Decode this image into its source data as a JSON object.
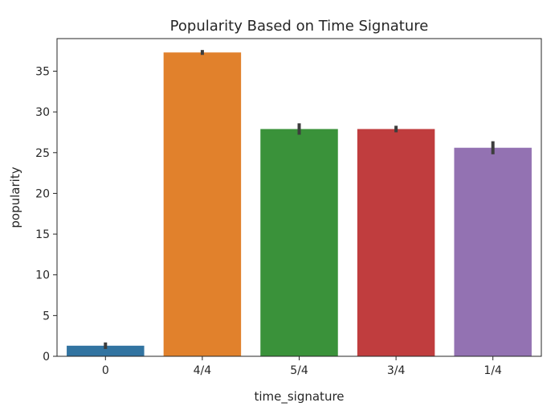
{
  "chart_data": {
    "type": "bar",
    "title": "Popularity Based on Time Signature",
    "xlabel": "time_signature",
    "ylabel": "popularity",
    "categories": [
      "0",
      "4/4",
      "5/4",
      "3/4",
      "1/4"
    ],
    "values": [
      1.3,
      37.3,
      27.9,
      27.9,
      25.6
    ],
    "error_bars": [
      [
        0.9,
        1.7
      ],
      [
        37.0,
        37.6
      ],
      [
        27.2,
        28.6
      ],
      [
        27.5,
        28.3
      ],
      [
        24.8,
        26.4
      ]
    ],
    "colors": [
      "#1f77b4",
      "#ff7f0e",
      "#2ca02c",
      "#d62728",
      "#9467bd"
    ],
    "bar_colors_rendered": [
      "#3274a1",
      "#e1812c",
      "#3a923a",
      "#c03d3e",
      "#9372b2"
    ],
    "ylim": [
      0,
      39
    ],
    "yticks": [
      0,
      5,
      10,
      15,
      20,
      25,
      30,
      35
    ],
    "grid": false,
    "legend": "none"
  }
}
